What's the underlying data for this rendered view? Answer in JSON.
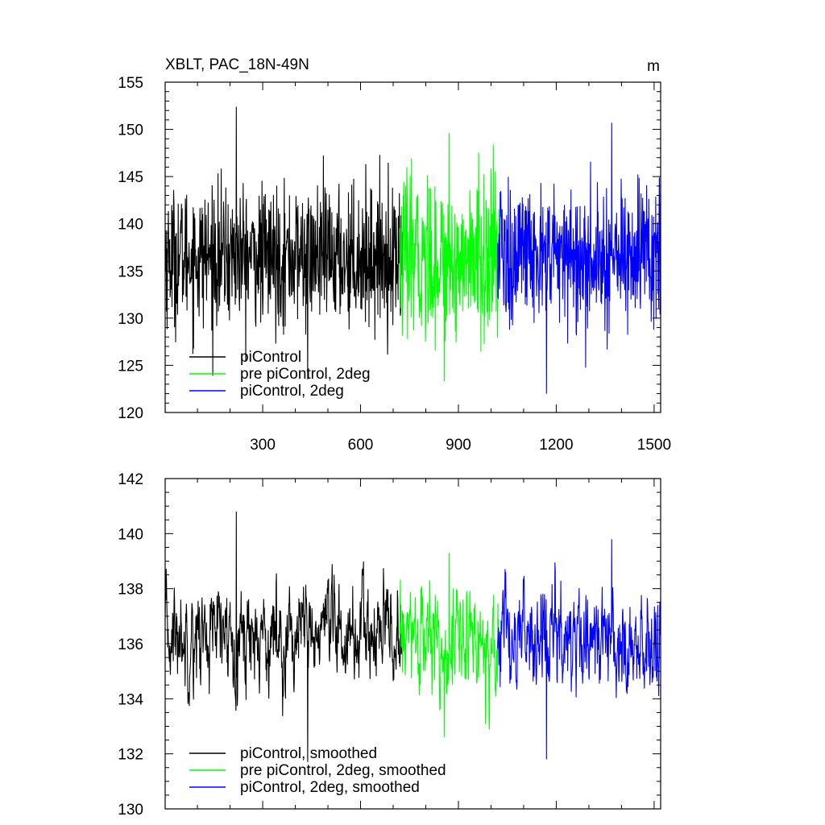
{
  "chart_data": [
    {
      "type": "line",
      "title": "XBLT, PAC_18N-49N",
      "units": "m",
      "xlim": [
        1,
        1520
      ],
      "ylim": [
        120,
        155
      ],
      "x_ticks": [
        300,
        600,
        900,
        1200,
        1500
      ],
      "y_ticks": [
        120,
        125,
        130,
        135,
        140,
        145,
        150,
        155
      ],
      "y_minor_step": 1,
      "x_minor_step": 100,
      "grid": false,
      "legend_position": "bottom-left",
      "series": [
        {
          "name": "piControl",
          "color": "#000000",
          "x_range": [
            1,
            730
          ],
          "mean": 136.5,
          "std": 3.6,
          "max": 152.4,
          "min": 123.5
        },
        {
          "name": "pre piControl, 2deg",
          "color": "#00ff00",
          "x_range": [
            720,
            1025
          ],
          "mean": 136.2,
          "std": 4.2,
          "max": 149.6,
          "min": 123.3
        },
        {
          "name": "piControl, 2deg",
          "color": "#0000ff",
          "x_range": [
            1020,
            1520
          ],
          "mean": 136.5,
          "std": 3.8,
          "max": 150.7,
          "min": 122.0
        }
      ]
    },
    {
      "type": "line",
      "title": "",
      "units": "",
      "xlim": [
        1,
        1520
      ],
      "ylim": [
        130,
        142
      ],
      "x_ticks": [
        300,
        600,
        900,
        1200,
        1500
      ],
      "y_ticks": [
        130,
        132,
        134,
        136,
        138,
        140,
        142
      ],
      "y_minor_step": 0.5,
      "x_minor_step": 100,
      "grid": false,
      "legend_position": "bottom-left",
      "series": [
        {
          "name": "piControl, smoothed",
          "color": "#000000",
          "x_range": [
            1,
            730
          ],
          "mean": 136.3,
          "std": 1.3,
          "max": 140.8,
          "min": 131.7
        },
        {
          "name": "pre piControl, 2deg, smoothed",
          "color": "#00ff00",
          "x_range": [
            720,
            1025
          ],
          "mean": 136.1,
          "std": 1.4,
          "max": 139.3,
          "min": 132.6
        },
        {
          "name": "piControl, 2deg, smoothed",
          "color": "#0000ff",
          "x_range": [
            1020,
            1520
          ],
          "mean": 136.2,
          "std": 1.4,
          "max": 139.8,
          "min": 131.8
        }
      ]
    }
  ]
}
